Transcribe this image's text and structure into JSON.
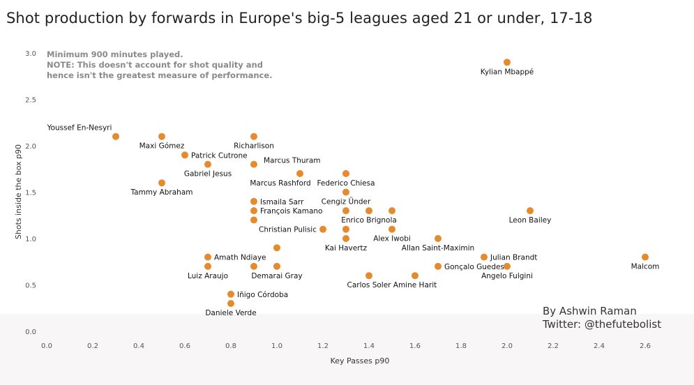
{
  "header": {
    "title": "Shot production by forwards in Europe's big-5 leagues aged 21 or under, 17-18"
  },
  "credit": {
    "line1": "By Ashwin Raman",
    "line2": "Twitter: @thefutebolist"
  },
  "colors": {
    "point": "#e68a2e",
    "band": "#f8f6f6"
  },
  "chart_data": {
    "type": "scatter",
    "title": "Shot production by forwards in Europe's big-5 leagues aged 21 or under, 17-18",
    "xlabel": "Key Passes p90",
    "ylabel": "Shots inside the box p90",
    "xlim": [
      0,
      2.6
    ],
    "ylim": [
      0,
      3.0
    ],
    "xticks": [
      "0.0",
      "0.2",
      "0.4",
      "0.6",
      "0.8",
      "1.0",
      "1.2",
      "1.4",
      "1.6",
      "1.8",
      "2.0",
      "2.2",
      "2.4",
      "2.6"
    ],
    "yticks": [
      "0.0",
      "0.5",
      "1.0",
      "1.5",
      "2.0",
      "2.5",
      "3.0"
    ],
    "grid": false,
    "notes": [
      "Minimum 900 minutes played.",
      "NOTE: This doesn't account for shot quality and",
      "hence isn't the greatest measure of performance."
    ],
    "points": [
      {
        "label": "Kylian Mbappé",
        "x": 2.0,
        "y": 2.9,
        "pos": "below"
      },
      {
        "label": "Youssef En-Nesyri",
        "x": 0.3,
        "y": 2.1,
        "pos": "above-left"
      },
      {
        "label": "Maxi Gómez",
        "x": 0.5,
        "y": 2.1,
        "pos": "below"
      },
      {
        "label": "Richarlison",
        "x": 0.9,
        "y": 2.1,
        "pos": "below"
      },
      {
        "label": "Patrick Cutrone",
        "x": 0.6,
        "y": 1.9,
        "pos": "right"
      },
      {
        "label": "Gabriel Jesus",
        "x": 0.7,
        "y": 1.8,
        "pos": "below"
      },
      {
        "label": "Marcus Thuram",
        "x": 0.9,
        "y": 1.8,
        "pos": "above-right"
      },
      {
        "label": "Marcus Rashford",
        "x": 1.1,
        "y": 1.7,
        "pos": "below-left"
      },
      {
        "label": "Federico Chiesa",
        "x": 1.3,
        "y": 1.7,
        "pos": "below"
      },
      {
        "label": "Tammy Abraham",
        "x": 0.5,
        "y": 1.6,
        "pos": "below"
      },
      {
        "label": "Cengiz Ünder",
        "x": 1.3,
        "y": 1.5,
        "pos": "below"
      },
      {
        "label": "Ismaila Sarr",
        "x": 0.9,
        "y": 1.4,
        "pos": "right"
      },
      {
        "label": "François Kamano",
        "x": 0.9,
        "y": 1.3,
        "pos": "right"
      },
      {
        "label": "",
        "x": 1.3,
        "y": 1.3,
        "pos": "none"
      },
      {
        "label": "Enrico Brignola",
        "x": 1.4,
        "y": 1.3,
        "pos": "below"
      },
      {
        "label": "Leon Bailey",
        "x": 2.1,
        "y": 1.3,
        "pos": "below"
      },
      {
        "label": "",
        "x": 0.9,
        "y": 1.2,
        "pos": "none"
      },
      {
        "label": "Christian Pulisic",
        "x": 1.2,
        "y": 1.1,
        "pos": "left"
      },
      {
        "label": "",
        "x": 1.3,
        "y": 1.1,
        "pos": "none"
      },
      {
        "label": "Alex Iwobi",
        "x": 1.5,
        "y": 1.1,
        "pos": "below"
      },
      {
        "label": "",
        "x": 1.5,
        "y": 1.3,
        "pos": "none"
      },
      {
        "label": "Kai Havertz",
        "x": 1.3,
        "y": 1.0,
        "pos": "below"
      },
      {
        "label": "Allan Saint-Maximin",
        "x": 1.7,
        "y": 1.0,
        "pos": "below"
      },
      {
        "label": "",
        "x": 1.0,
        "y": 0.9,
        "pos": "none"
      },
      {
        "label": "Amath Ndiaye",
        "x": 0.7,
        "y": 0.8,
        "pos": "right"
      },
      {
        "label": "Julian Brandt",
        "x": 1.9,
        "y": 0.8,
        "pos": "right"
      },
      {
        "label": "Malcom",
        "x": 2.6,
        "y": 0.8,
        "pos": "below"
      },
      {
        "label": "Luiz Araujo",
        "x": 0.7,
        "y": 0.7,
        "pos": "below"
      },
      {
        "label": "Demarai Gray",
        "x": 1.0,
        "y": 0.7,
        "pos": "below"
      },
      {
        "label": "",
        "x": 0.9,
        "y": 0.7,
        "pos": "none"
      },
      {
        "label": "Gonçalo Guedes",
        "x": 1.7,
        "y": 0.7,
        "pos": "right"
      },
      {
        "label": "Angelo Fulgini",
        "x": 2.0,
        "y": 0.7,
        "pos": "below"
      },
      {
        "label": "Carlos Soler",
        "x": 1.4,
        "y": 0.6,
        "pos": "below"
      },
      {
        "label": "Amine Harit",
        "x": 1.6,
        "y": 0.6,
        "pos": "below"
      },
      {
        "label": "Iñigo Córdoba",
        "x": 0.8,
        "y": 0.4,
        "pos": "right"
      },
      {
        "label": "Daniele Verde",
        "x": 0.8,
        "y": 0.3,
        "pos": "below"
      }
    ]
  }
}
